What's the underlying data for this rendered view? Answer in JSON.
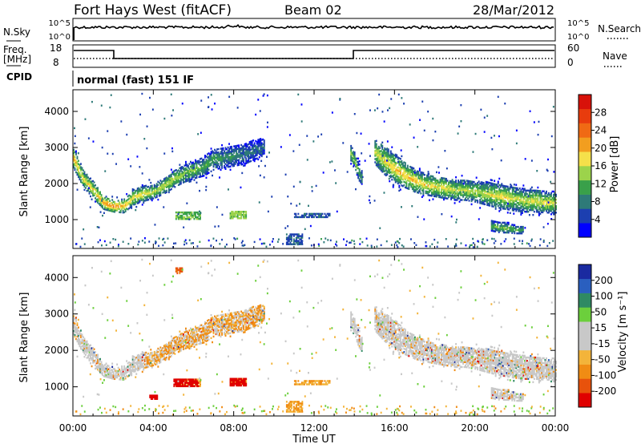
{
  "header": {
    "station": "Fort Hays West (fitACF)",
    "beam": "Beam 02",
    "date": "28/Mar/2012"
  },
  "top_panels": {
    "nsky_label": "N.Sky",
    "nsky_ticks": [
      "10^5",
      "10^0"
    ],
    "nsearch_label": "N.Search",
    "freq_label_1": "Freq.",
    "freq_label_2": "[MHz]",
    "freq_ticks": [
      "18",
      "8"
    ],
    "nave_label": "Nave",
    "nave_ticks": [
      "60",
      "0"
    ],
    "cpid_label": "CPID",
    "cpid_value": "normal (fast) 151 IF"
  },
  "colors": {
    "power_scale": [
      "#0000ff",
      "#1c3fb0",
      "#2e7a78",
      "#39a04a",
      "#9cd34b",
      "#f5e04a",
      "#f29e1f",
      "#f06a14",
      "#e83c0d",
      "#d8120a"
    ],
    "velocity_scale": [
      "#1a2aa0",
      "#2a5fbf",
      "#2f8a63",
      "#6ccf3c",
      "#c8c8c8",
      "#c8c8c8",
      "#f3b43a",
      "#f08c14",
      "#e8520c",
      "#e00000"
    ],
    "noise_trace": "#000000"
  },
  "chart_data": [
    {
      "type": "heatmap",
      "title": "",
      "xlabel": "",
      "ylabel": "Slant Range [km]",
      "xlim": [
        0,
        24
      ],
      "ylim": [
        200,
        4600
      ],
      "yticks": [
        "1000",
        "2000",
        "3000",
        "4000"
      ],
      "colorbar": {
        "label": "Power [dB]",
        "ticks": [
          "4",
          "8",
          "12",
          "16",
          "20",
          "24",
          "28"
        ],
        "range": [
          0,
          32
        ]
      },
      "bands": [
        {
          "name": "",
          "x": [
            0.0,
            0.5,
            1.0,
            1.5,
            2.0,
            2.5,
            3.0,
            3.5,
            4.0,
            4.5,
            5.0,
            5.5,
            6.0,
            6.5,
            7.0,
            7.5,
            8.0,
            8.5,
            9.0,
            9.5
          ],
          "center": [
            2700,
            2100,
            1800,
            1450,
            1350,
            1350,
            1600,
            1700,
            1750,
            1900,
            2100,
            2250,
            2350,
            2450,
            2650,
            2700,
            2750,
            2800,
            2900,
            3000
          ],
          "width": [
            600,
            500,
            500,
            400,
            350,
            400,
            450,
            450,
            400,
            450,
            500,
            500,
            500,
            550,
            600,
            600,
            600,
            600,
            550,
            500
          ],
          "peak": [
            20,
            18,
            18,
            22,
            24,
            20,
            18,
            18,
            16,
            16,
            16,
            14,
            14,
            12,
            12,
            10,
            10,
            8,
            8,
            6
          ]
        },
        {
          "name": "",
          "x": [
            15.0,
            15.5,
            16.0,
            16.5,
            17.0,
            17.5,
            18.0,
            18.5,
            19.0,
            19.5,
            20.0,
            20.5,
            21.0,
            21.5,
            22.0,
            22.5,
            23.0,
            23.5,
            24.0
          ],
          "center": [
            2850,
            2600,
            2400,
            2200,
            2050,
            1950,
            1900,
            1850,
            1800,
            1800,
            1750,
            1700,
            1650,
            1600,
            1550,
            1500,
            1500,
            1450,
            1450
          ],
          "width": [
            700,
            800,
            800,
            700,
            650,
            600,
            600,
            600,
            600,
            600,
            600,
            650,
            700,
            700,
            700,
            650,
            650,
            600,
            600
          ],
          "peak": [
            16,
            18,
            20,
            20,
            20,
            18,
            18,
            18,
            16,
            16,
            16,
            16,
            18,
            18,
            16,
            16,
            18,
            18,
            16
          ]
        },
        {
          "name": "",
          "x": [
            13.8,
            14.0,
            14.2,
            14.4
          ],
          "center": [
            2800,
            2600,
            2300,
            2100
          ],
          "width": [
            500,
            500,
            500,
            400
          ],
          "peak": [
            14,
            14,
            12,
            10
          ]
        },
        {
          "name": "",
          "x": [
            20.8,
            21.2,
            21.6,
            22.0,
            22.4
          ],
          "center": [
            800,
            750,
            750,
            700,
            700
          ],
          "width": [
            300,
            300,
            300,
            250,
            250
          ],
          "peak": [
            12,
            14,
            14,
            12,
            10
          ]
        }
      ],
      "patches": [
        {
          "x": [
            5.1,
            6.3
          ],
          "y": [
            1000,
            1180
          ],
          "value": 12
        },
        {
          "x": [
            7.8,
            8.6
          ],
          "y": [
            1020,
            1200
          ],
          "value": 14
        },
        {
          "x": [
            11.0,
            12.8
          ],
          "y": [
            1050,
            1150
          ],
          "value": 6
        },
        {
          "x": [
            10.6,
            11.4
          ],
          "y": [
            300,
            600
          ],
          "value": 6
        }
      ]
    },
    {
      "type": "heatmap",
      "title": "",
      "xlabel": "Time UT",
      "ylabel": "Slant Range [km]",
      "xlim": [
        0,
        24
      ],
      "ylim": [
        200,
        4600
      ],
      "xticks": [
        "00:00",
        "04:00",
        "08:00",
        "12:00",
        "16:00",
        "20:00",
        "00:00"
      ],
      "yticks": [
        "1000",
        "2000",
        "3000",
        "4000"
      ],
      "colorbar": {
        "label": "Velocity [m s⁻¹]",
        "ticks": [
          "200",
          "100",
          "50",
          "15",
          "-15",
          "-50",
          "-100",
          "-200"
        ],
        "range": [
          -250,
          250
        ]
      },
      "patches": [
        {
          "x": [
            5.0,
            6.2
          ],
          "y": [
            1000,
            1180
          ],
          "value": -220
        },
        {
          "x": [
            7.8,
            8.6
          ],
          "y": [
            1020,
            1200
          ],
          "value": -180
        },
        {
          "x": [
            3.8,
            4.2
          ],
          "y": [
            650,
            780
          ],
          "value": -220
        },
        {
          "x": [
            5.1,
            5.4
          ],
          "y": [
            4100,
            4250
          ],
          "value": -80
        }
      ]
    }
  ]
}
